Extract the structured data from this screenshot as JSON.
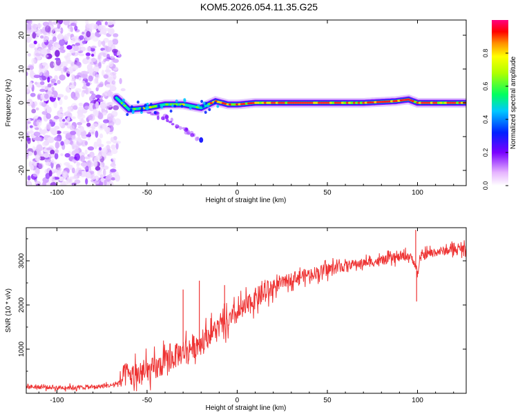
{
  "figure": {
    "title": "KOM5.2026.054.11.35.G25"
  },
  "chart_data": [
    {
      "type": "heatmap",
      "title": "KOM5.2026.054.11.35.G25",
      "xlabel": "Height of straight line (km)",
      "ylabel": "Frequency (Hz)",
      "xlim": [
        -117,
        127
      ],
      "ylim": [
        -24.5,
        24.5
      ],
      "xticks": [
        -100,
        -50,
        0,
        50,
        100
      ],
      "yticks": [
        -20,
        -10,
        0,
        10,
        20
      ],
      "colorbar": {
        "label": "Normalized spectral amplitude",
        "range": [
          0,
          1
        ],
        "ticks": [
          "0.0",
          "0.2",
          "0.4",
          "0.6",
          "0.8"
        ],
        "tick_values": [
          0.0,
          0.2,
          0.4,
          0.6,
          0.8
        ]
      },
      "features": {
        "noise_region_x": [
          -117,
          -67
        ],
        "main_line": {
          "description": "narrow line near 0 Hz, rising from about -2 Hz at -65 km to about 0 Hz after -10 km",
          "x": [
            -67,
            -60,
            -50,
            -40,
            -30,
            -20,
            -12,
            -5,
            0,
            10,
            30,
            50,
            70,
            88,
            95,
            100,
            110,
            127
          ],
          "y": [
            1.5,
            -2,
            -1.5,
            -0.5,
            -0.5,
            -1.5,
            0.5,
            -0.5,
            -0.5,
            0,
            0,
            0,
            0,
            0.5,
            1,
            0,
            0,
            0
          ]
        },
        "secondary_branch": {
          "description": "faint branch descending from -45 km to -20 km",
          "x": [
            -50,
            -45,
            -40,
            -35,
            -30,
            -25,
            -20
          ],
          "y": [
            -2,
            -3.5,
            -4.5,
            -6,
            -7.5,
            -9.5,
            -11
          ]
        }
      }
    },
    {
      "type": "line",
      "xlabel": "Height of straight line (km)",
      "ylabel": "SNR (10 * v/v)",
      "xlim": [
        -117,
        127
      ],
      "ylim": [
        0,
        3750
      ],
      "xticks": [
        -100,
        -50,
        0,
        50,
        100
      ],
      "yticks": [
        1000,
        2000,
        3000
      ],
      "series": [
        {
          "name": "SNR",
          "color": "#ee3333",
          "x": [
            -117,
            -100,
            -80,
            -70,
            -65,
            -62,
            -55,
            -50,
            -45,
            -40,
            -35,
            -30,
            -25,
            -20,
            -18,
            -15,
            -10,
            -5,
            0,
            5,
            10,
            15,
            20,
            25,
            30,
            40,
            50,
            60,
            70,
            80,
            90,
            95,
            98,
            100,
            102,
            105,
            110,
            120,
            127
          ],
          "values": [
            150,
            130,
            140,
            180,
            250,
            420,
            380,
            480,
            560,
            700,
            820,
            950,
            1050,
            1150,
            1250,
            1350,
            1500,
            1600,
            1800,
            1950,
            2150,
            2250,
            2400,
            2500,
            2600,
            2700,
            2800,
            2900,
            2950,
            3000,
            3080,
            3120,
            3000,
            2700,
            3100,
            3150,
            3200,
            3250,
            3280
          ]
        }
      ],
      "spikes": [
        {
          "x": -30,
          "y": 2350
        },
        {
          "x": -21,
          "y": 2550
        },
        {
          "x": -7,
          "y": 2450
        },
        {
          "x": 99,
          "y": 3700
        },
        {
          "x": 99.5,
          "y": 2080
        }
      ]
    }
  ]
}
